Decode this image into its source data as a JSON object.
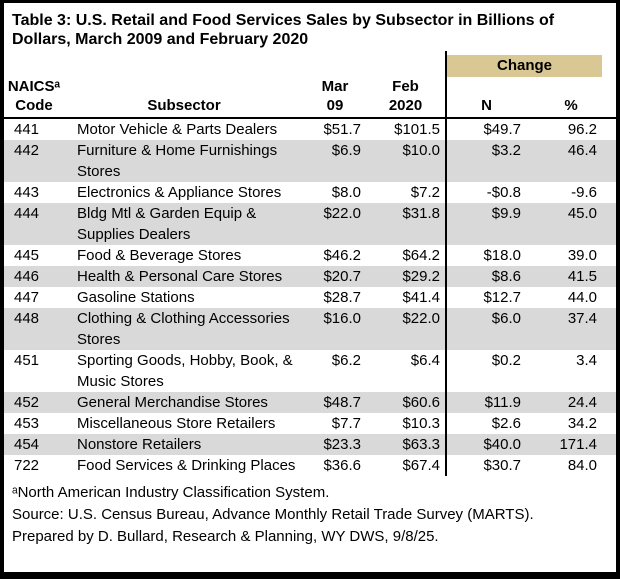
{
  "title": "Table 3: U.S. Retail and Food Services Sales by Subsector in Billions of Dollars, March 2009 and February 2020",
  "labels": {
    "change": "Change",
    "naics_line1": "NAICSᵃ",
    "naics_line2": "Code",
    "subsector": "Subsector",
    "mar_line1": "Mar",
    "mar_line2": "09",
    "feb_line1": "Feb",
    "feb_line2": "2020",
    "n": "N",
    "pct": "%"
  },
  "chart_data": {
    "type": "table",
    "title": "U.S. Retail and Food Services Sales by Subsector in Billions of Dollars, March 2009 and February 2020",
    "columns": [
      "NAICS Code",
      "Subsector",
      "Mar 09",
      "Feb 2020",
      "Change N",
      "Change %"
    ],
    "rows": [
      [
        "441",
        "Motor Vehicle & Parts Dealers",
        51.7,
        101.5,
        49.7,
        96.2
      ],
      [
        "442",
        "Furniture & Home Furnishings Stores",
        6.9,
        10.0,
        3.2,
        46.4
      ],
      [
        "443",
        "Electronics & Appliance Stores",
        8.0,
        7.2,
        -0.8,
        -9.6
      ],
      [
        "444",
        "Bldg Mtl & Garden Equip & Supplies Dealers",
        22.0,
        31.8,
        9.9,
        45.0
      ],
      [
        "445",
        "Food & Beverage Stores",
        46.2,
        64.2,
        18.0,
        39.0
      ],
      [
        "446",
        "Health & Personal Care Stores",
        20.7,
        29.2,
        8.6,
        41.5
      ],
      [
        "447",
        "Gasoline Stations",
        28.7,
        41.4,
        12.7,
        44.0
      ],
      [
        "448",
        "Clothing & Clothing Accessories Stores",
        16.0,
        22.0,
        6.0,
        37.4
      ],
      [
        "451",
        "Sporting Goods, Hobby, Book, & Music Stores",
        6.2,
        6.4,
        0.2,
        3.4
      ],
      [
        "452",
        "General Merchandise Stores",
        48.7,
        60.6,
        11.9,
        24.4
      ],
      [
        "453",
        "Miscellaneous Store Retailers",
        7.7,
        10.3,
        2.6,
        34.2
      ],
      [
        "454",
        "Nonstore Retailers",
        23.3,
        63.3,
        40.0,
        171.4
      ],
      [
        "722",
        "Food Services & Drinking Places",
        36.6,
        67.4,
        30.7,
        84.0
      ]
    ]
  },
  "footnotes": {
    "naics": "ᵃNorth American Industry Classification System.",
    "source": "Source: U.S. Census Bureau, Advance Monthly Retail Trade Survey (MARTS).",
    "prepared": "Prepared by D. Bullard, Research & Planning, WY DWS, 9/8/25."
  },
  "colors": {
    "change_bg": "#d9c894",
    "stripe": "#d9d9d9",
    "border": "#000000"
  }
}
